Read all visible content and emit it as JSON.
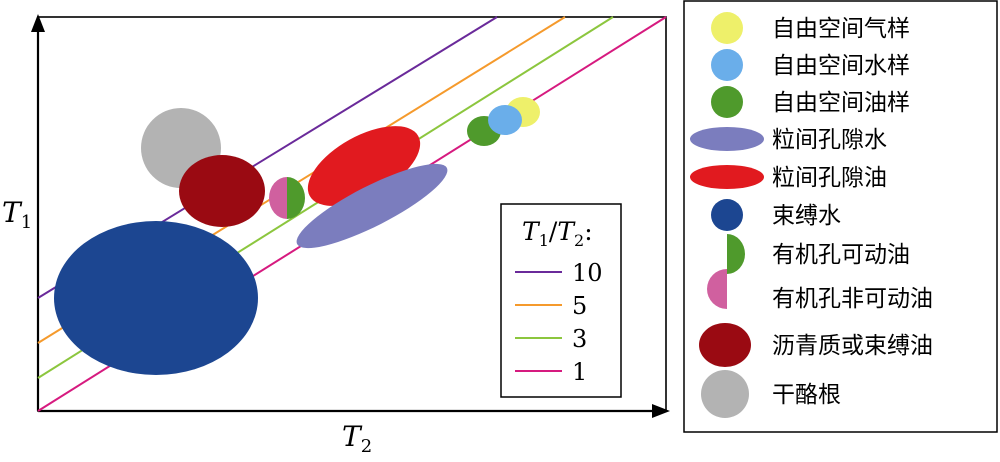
{
  "axes": {
    "y_label": "T",
    "y_sub": "1",
    "x_label": "T",
    "x_sub": "2"
  },
  "ratio_legend": {
    "title_t1": "T",
    "title_s1": "1",
    "title_slash": "/",
    "title_t2": "T",
    "title_s2": "2",
    "title_colon": ":",
    "entries": [
      {
        "label": "10",
        "color": "#6a2a9a"
      },
      {
        "label": "5",
        "color": "#f59a2c"
      },
      {
        "label": "3",
        "color": "#8cc63e"
      },
      {
        "label": "1",
        "color": "#d61a7f"
      }
    ]
  },
  "fluid_legend": {
    "entries": [
      {
        "label": "自由空间气样",
        "color": "#eef06a",
        "icon": "yellow-circle-icon"
      },
      {
        "label": "自由空间水样",
        "color": "#6aaeea",
        "icon": "blue-circle-icon"
      },
      {
        "label": "自由空间油样",
        "color": "#4f9a2c",
        "icon": "green-circle-icon"
      },
      {
        "label": "粒间孔隙水",
        "color": "#7b7dbe",
        "icon": "purple-ellipse-icon"
      },
      {
        "label": "粒间孔隙油",
        "color": "#e11a1f",
        "icon": "red-ellipse-icon"
      },
      {
        "label": "束缚水",
        "color": "#1c4691",
        "icon": "navy-circle-icon"
      },
      {
        "label": "有机孔可动油",
        "color": "#4f9a2c",
        "icon": "green-half-icon"
      },
      {
        "label": "有机孔非可动油",
        "color": "#d0609f",
        "icon": "pink-half-icon"
      },
      {
        "label": "沥青质或束缚油",
        "color": "#9a0a12",
        "icon": "darkred-ellipse-icon"
      },
      {
        "label": "干酪根",
        "color": "#b3b3b3",
        "icon": "gray-circle-icon"
      }
    ]
  }
}
